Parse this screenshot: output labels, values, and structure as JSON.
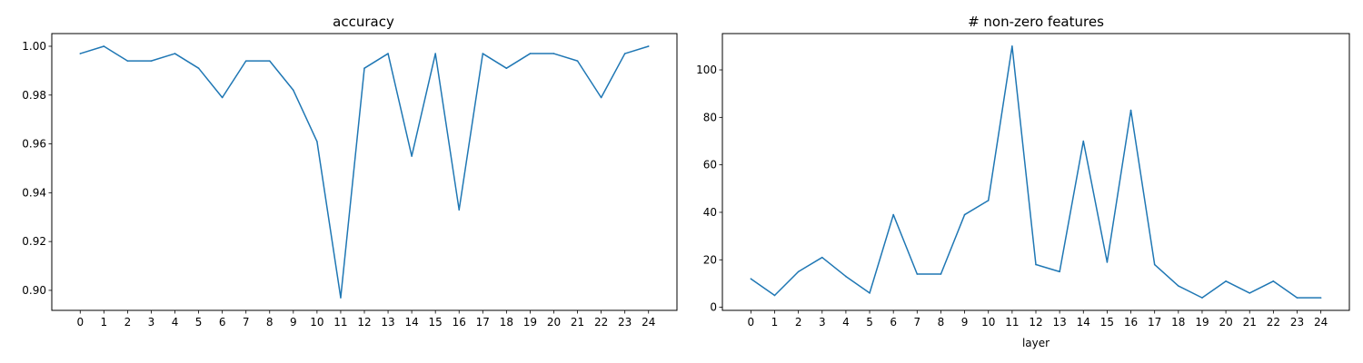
{
  "chart_data": [
    {
      "type": "line",
      "title": "accuracy",
      "xlabel": "",
      "ylabel": "",
      "color": "#1f77b4",
      "grid": false,
      "x": [
        0,
        1,
        2,
        3,
        4,
        5,
        6,
        7,
        8,
        9,
        10,
        11,
        12,
        13,
        14,
        15,
        16,
        17,
        18,
        19,
        20,
        21,
        22,
        23,
        24
      ],
      "x_tick_labels": [
        "0",
        "1",
        "2",
        "3",
        "4",
        "5",
        "6",
        "7",
        "8",
        "9",
        "10",
        "11",
        "12",
        "13",
        "14",
        "15",
        "16",
        "17",
        "18",
        "19",
        "20",
        "21",
        "22",
        "23",
        "24"
      ],
      "y": [
        0.997,
        1.0,
        0.994,
        0.994,
        0.997,
        0.991,
        0.979,
        0.994,
        0.994,
        0.982,
        0.961,
        0.897,
        0.991,
        0.997,
        0.955,
        0.997,
        0.933,
        0.997,
        0.991,
        0.997,
        0.997,
        0.994,
        0.979,
        0.997,
        1.0
      ],
      "y_ticks": [
        0.9,
        0.92,
        0.94,
        0.96,
        0.98,
        1.0
      ],
      "y_tick_labels": [
        "0.90",
        "0.92",
        "0.94",
        "0.96",
        "0.98",
        "1.00"
      ],
      "xlim": [
        -1.2,
        25.2
      ],
      "ylim": [
        0.8918,
        1.0052
      ]
    },
    {
      "type": "line",
      "title": "# non-zero features",
      "xlabel": "layer",
      "ylabel": "",
      "color": "#1f77b4",
      "grid": false,
      "x": [
        0,
        1,
        2,
        3,
        4,
        5,
        6,
        7,
        8,
        9,
        10,
        11,
        12,
        13,
        14,
        15,
        16,
        17,
        18,
        19,
        20,
        21,
        22,
        23,
        24
      ],
      "x_tick_labels": [
        "0",
        "1",
        "2",
        "3",
        "4",
        "5",
        "6",
        "7",
        "8",
        "9",
        "10",
        "11",
        "12",
        "13",
        "14",
        "15",
        "16",
        "17",
        "18",
        "19",
        "20",
        "21",
        "22",
        "23",
        "24"
      ],
      "y": [
        12,
        5,
        15,
        21,
        13,
        6,
        39,
        14,
        14,
        39,
        45,
        110,
        18,
        15,
        70,
        19,
        83,
        18,
        9,
        4,
        11,
        6,
        11,
        4,
        4
      ],
      "y_ticks": [
        0,
        20,
        40,
        60,
        80,
        100
      ],
      "y_tick_labels": [
        "0",
        "20",
        "40",
        "60",
        "80",
        "100"
      ],
      "xlim": [
        -1.2,
        25.2
      ],
      "ylim": [
        -1.3,
        115.3
      ]
    }
  ]
}
